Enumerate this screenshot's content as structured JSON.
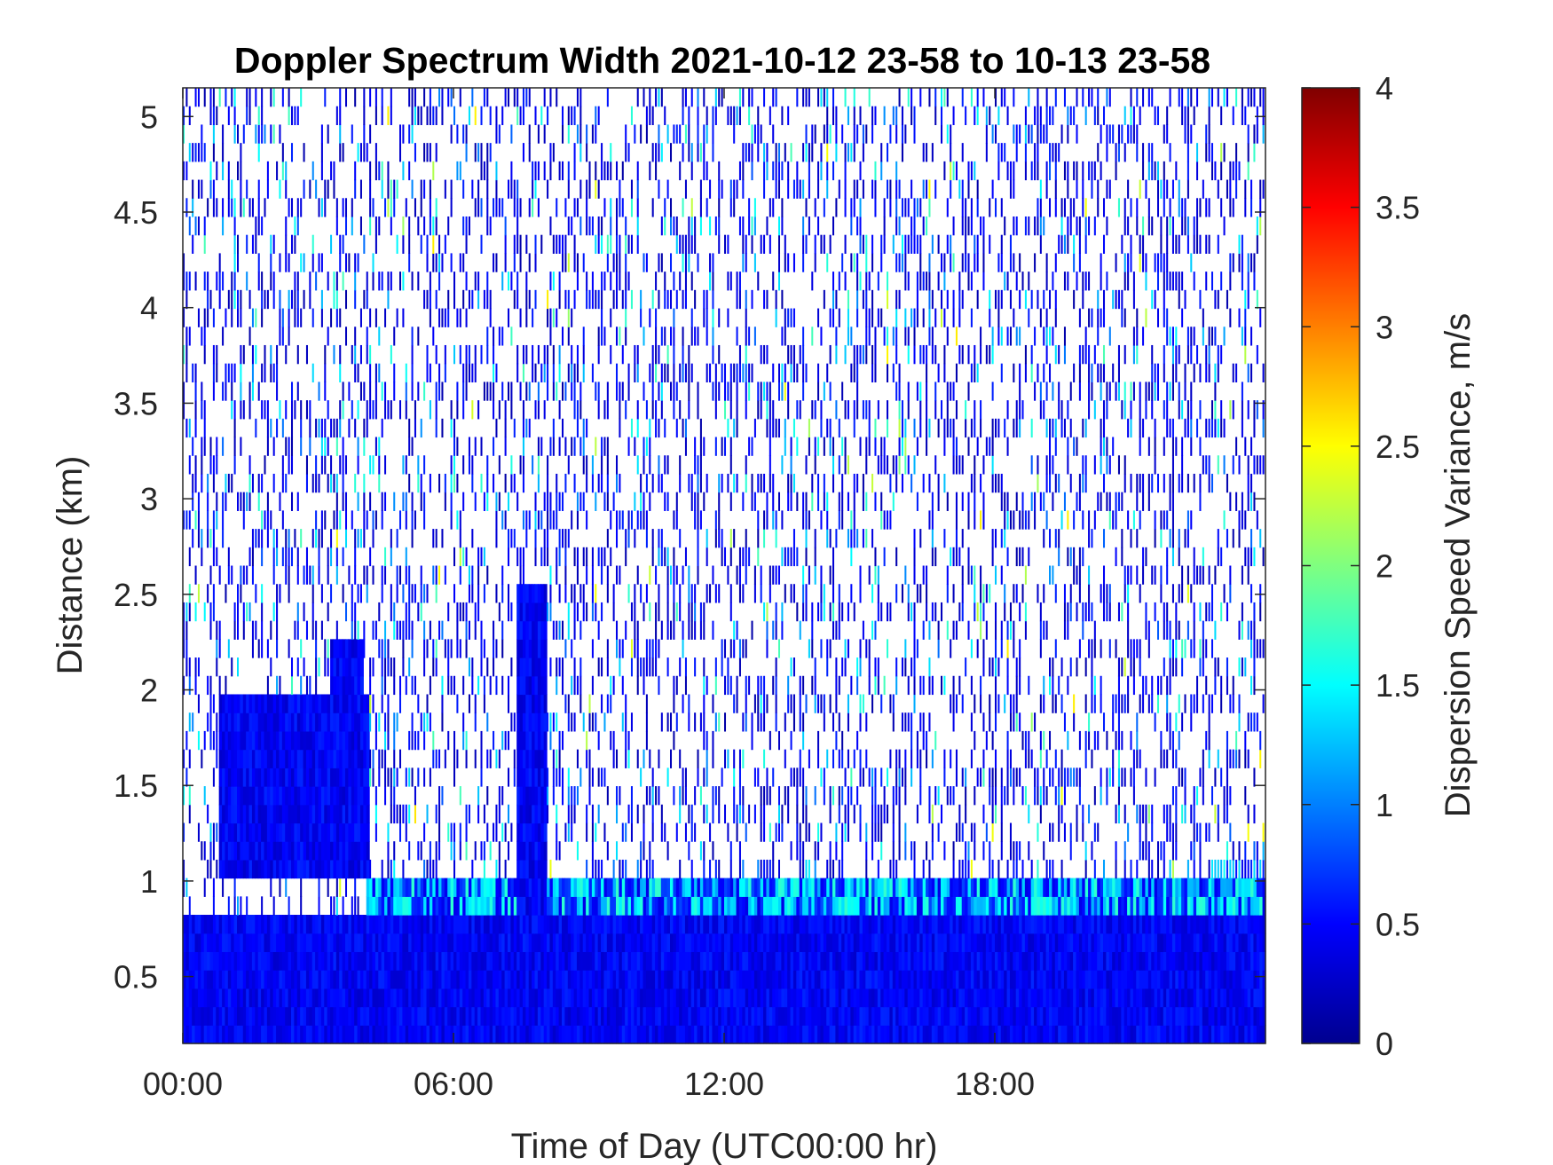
{
  "chart_data": {
    "type": "heatmap",
    "title": "Doppler Spectrum Width 2021-10-12 23-58 to 10-13 23-58",
    "xlabel": "Time of Day (UTC00:00 hr)",
    "ylabel": "Distance (km)",
    "x_unit": "hours",
    "xlim": [
      0,
      24
    ],
    "ylim": [
      0.15,
      5.15
    ],
    "x_ticks": [
      0,
      6,
      12,
      18
    ],
    "x_tick_labels": [
      "00:00",
      "06:00",
      "12:00",
      "18:00"
    ],
    "y_ticks": [
      0.5,
      1,
      1.5,
      2,
      2.5,
      3,
      3.5,
      4,
      4.5,
      5
    ],
    "y_tick_labels": [
      "0.5",
      "1",
      "1.5",
      "2",
      "2.5",
      "3",
      "3.5",
      "4",
      "4.5",
      "5"
    ],
    "colorbar": {
      "label": "Dispersion Speed Variance, m/s",
      "colormap": "jet",
      "clim": [
        0,
        4
      ],
      "ticks": [
        0,
        0.5,
        1,
        1.5,
        2,
        2.5,
        3,
        3.5,
        4
      ],
      "tick_labels": [
        "0",
        "0.5",
        "1",
        "1.5",
        "2",
        "2.5",
        "3",
        "3.5",
        "4"
      ]
    },
    "regions": [
      {
        "description_value": "dense low-level layer",
        "x": [
          0,
          24
        ],
        "y": [
          0.15,
          0.85
        ],
        "value": 0.45
      },
      {
        "description_value": "noise speckle aloft",
        "x": [
          0,
          24
        ],
        "y": [
          0.85,
          5.15
        ],
        "value_range": [
          0.2,
          2.6
        ]
      },
      {
        "description_value": "cloud/aerosol block",
        "x": [
          0.8,
          4.1
        ],
        "y": [
          1.05,
          1.95
        ],
        "value": 0.45
      },
      {
        "description_value": "cloud top extension",
        "x": [
          3.3,
          4.0
        ],
        "y": [
          1.95,
          2.25
        ],
        "value": 0.5
      },
      {
        "description_value": "vertical plume",
        "x": [
          7.4,
          8.1
        ],
        "y": [
          0.15,
          2.55
        ],
        "value": 0.45
      },
      {
        "description_value": "elevated turbulent band",
        "x": [
          4.1,
          24
        ],
        "y": [
          0.8,
          1.05
        ],
        "value": 1.4
      }
    ]
  }
}
